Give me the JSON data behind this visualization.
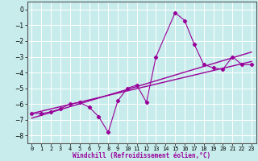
{
  "xlabel": "Windchill (Refroidissement éolien,°C)",
  "bg_color": "#c8ecec",
  "grid_color": "#ffffff",
  "line_color": "#990099",
  "x_data": [
    0,
    1,
    2,
    3,
    4,
    5,
    6,
    7,
    8,
    9,
    10,
    11,
    12,
    13,
    15,
    16,
    17,
    18,
    19,
    20,
    21,
    22,
    23
  ],
  "y_main": [
    -6.6,
    -6.6,
    -6.5,
    -6.3,
    -6.0,
    -5.9,
    -6.2,
    -6.8,
    -7.8,
    -5.8,
    -5.0,
    -4.8,
    -5.9,
    -3.0,
    -0.2,
    -0.7,
    -2.2,
    -3.5,
    -3.7,
    -3.8,
    -3.0,
    -3.5,
    -3.5
  ],
  "trend1_x": [
    0,
    23
  ],
  "trend1_y": [
    -6.6,
    -3.3
  ],
  "trend2_x": [
    0,
    23
  ],
  "trend2_y": [
    -6.9,
    -2.7
  ],
  "xlim": [
    -0.5,
    23.5
  ],
  "ylim": [
    -8.5,
    0.5
  ],
  "yticks": [
    0,
    -1,
    -2,
    -3,
    -4,
    -5,
    -6,
    -7,
    -8
  ],
  "xlabel_fontsize": 5.5,
  "tick_fontsize": 5.0
}
